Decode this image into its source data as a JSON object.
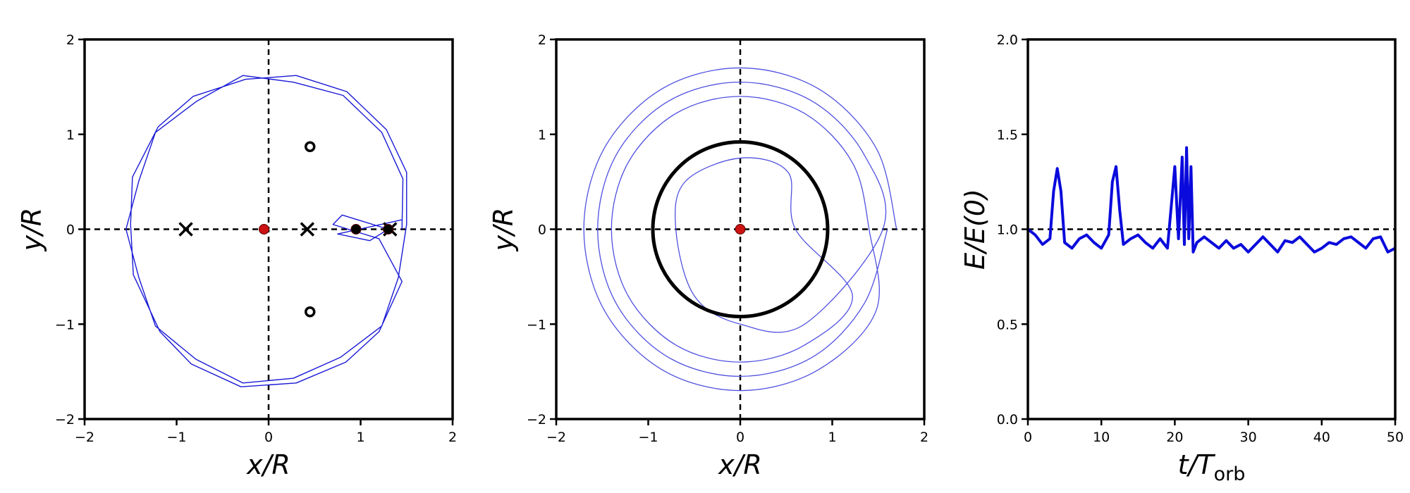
{
  "chart_data": [
    {
      "type": "line",
      "xlabel": "x/R",
      "ylabel": "y/R",
      "xlim": [
        -2,
        2
      ],
      "ylim": [
        -2,
        2
      ],
      "xticks": [
        {
          "value": -2,
          "label": "−2"
        },
        {
          "value": -1,
          "label": "−1"
        },
        0,
        1,
        2
      ],
      "yticks": [
        {
          "value": -2,
          "label": "−2"
        },
        {
          "value": -1,
          "label": "−1"
        },
        0,
        1,
        2
      ],
      "hlines": [
        0
      ],
      "vlines": [
        0
      ],
      "series": [
        {
          "color": "#1a1ad6",
          "width": 1.4,
          "smooth": false,
          "x": [
            1.45,
            1.46,
            1.23,
            0.81,
            0.27,
            -0.28,
            -0.78,
            -1.23,
            -1.41,
            -1.55,
            -1.41,
            -1.23,
            -0.79,
            -0.28,
            0.27,
            0.78,
            1.23,
            1.41,
            1.5,
            1.5,
            1.28,
            0.85,
            0.3,
            -0.25,
            -0.82,
            -1.2,
            -1.48,
            -1.5,
            -1.47,
            -1.18,
            -0.84,
            -0.3,
            0.3,
            0.84,
            1.2,
            1.45,
            1.2,
            0.7,
            0.8,
            1.3,
            1.1,
            0.75,
            1.45
          ],
          "y": [
            0,
            0.53,
            1.02,
            1.41,
            1.55,
            1.62,
            1.35,
            1.02,
            0.51,
            0,
            -0.51,
            -1.02,
            -1.37,
            -1.62,
            -1.57,
            -1.35,
            -1.02,
            -0.51,
            0.05,
            0.6,
            1.05,
            1.45,
            1.62,
            1.58,
            1.4,
            1.08,
            0.55,
            0.05,
            -0.48,
            -1.08,
            -1.42,
            -1.66,
            -1.62,
            -1.4,
            -1.08,
            -0.55,
            -0.1,
            0.05,
            0.15,
            0,
            -0.12,
            -0.05,
            0.1
          ]
        }
      ],
      "markers": [
        {
          "marker": "x",
          "color": "#000000",
          "x": [
            -0.9,
            0.42,
            1.32
          ],
          "y": [
            0,
            0,
            0
          ]
        },
        {
          "marker": "o",
          "color": "#000000",
          "x": [
            0.45,
            0.45
          ],
          "y": [
            0.87,
            -0.87
          ]
        },
        {
          "marker": "dot",
          "color": "#000000",
          "x": [
            0.95,
            1.3
          ],
          "y": [
            0,
            0
          ]
        },
        {
          "marker": "dot",
          "color": "#cc1111",
          "x": [
            -0.05
          ],
          "y": [
            0
          ]
        }
      ]
    },
    {
      "type": "line",
      "xlabel": "x/R",
      "ylabel": "y/R",
      "xlim": [
        -2,
        2
      ],
      "ylim": [
        -2,
        2
      ],
      "xticks": [
        {
          "value": -2,
          "label": "−2"
        },
        {
          "value": -1,
          "label": "−1"
        },
        0,
        1,
        2
      ],
      "yticks": [
        {
          "value": -2,
          "label": "−2"
        },
        {
          "value": -1,
          "label": "−1"
        },
        0,
        1,
        2
      ],
      "hlines": [
        0
      ],
      "vlines": [
        0
      ],
      "circle": {
        "r": 0.95,
        "color": "#000000"
      },
      "series": [
        {
          "color": "#5050e0",
          "width": 1.3,
          "smooth": true,
          "x": [
            1.7,
            1.48,
            0.85,
            0,
            -0.85,
            -1.48,
            -1.7,
            -1.48,
            -0.85,
            0,
            0.85,
            1.48,
            1.4,
            1.22,
            0.7,
            0,
            -0.7,
            -1.22,
            -1.4,
            -1.22,
            -0.7,
            0,
            0.7,
            1.22,
            0.6,
            0.52,
            0,
            -0.6,
            -0.7,
            -0.5,
            0,
            0.7,
            1.55,
            1.35,
            0.78,
            0,
            -0.78,
            -1.35,
            -1.55,
            -1.35,
            -0.78,
            0,
            0.78,
            1.35,
            1.6
          ],
          "y": [
            0,
            0.85,
            1.48,
            1.7,
            1.48,
            0.85,
            0,
            -0.85,
            -1.48,
            -1.7,
            -1.48,
            -0.85,
            0,
            0.7,
            1.22,
            1.4,
            1.22,
            0.7,
            0,
            -0.7,
            -1.22,
            -1.4,
            -1.22,
            -0.7,
            0,
            0.6,
            0.75,
            0.5,
            0,
            -0.7,
            -1.0,
            -1.0,
            0,
            0.78,
            1.35,
            1.55,
            1.35,
            0.78,
            0,
            -0.78,
            -1.35,
            -1.55,
            -1.35,
            -0.78,
            0
          ]
        }
      ],
      "markers": [
        {
          "marker": "dot",
          "color": "#cc1111",
          "x": [
            0
          ],
          "y": [
            0
          ]
        }
      ]
    },
    {
      "type": "line",
      "xlabel": "t/T",
      "xlabel_subscript": "orb",
      "ylabel": "E/E(0)",
      "xlim": [
        0,
        50
      ],
      "ylim": [
        0,
        2
      ],
      "xticks": [
        0,
        10,
        20,
        30,
        40,
        50
      ],
      "yticks": [
        {
          "value": 0,
          "label": "0.0"
        },
        0.5,
        {
          "value": 1,
          "label": "1.0"
        },
        1.5,
        {
          "value": 2,
          "label": "2.0"
        }
      ],
      "hlines": [
        1
      ],
      "series": [
        {
          "color": "#0a0adc",
          "width": 4,
          "smooth": false,
          "x": [
            0,
            1,
            2,
            3,
            3.5,
            4,
            4.5,
            5,
            6,
            7,
            8,
            9,
            10,
            11,
            11.5,
            12,
            12.5,
            13,
            14,
            15,
            16,
            17,
            18,
            19,
            20,
            20.5,
            21,
            21.3,
            21.6,
            21.9,
            22.2,
            22.5,
            23,
            24,
            25,
            26,
            27,
            28,
            29,
            30,
            31,
            32,
            33,
            34,
            35,
            36,
            37,
            38,
            39,
            40,
            41,
            42,
            43,
            44,
            45,
            46,
            47,
            48,
            49,
            50
          ],
          "y": [
            1.0,
            0.97,
            0.92,
            0.95,
            1.2,
            1.32,
            1.2,
            0.93,
            0.9,
            0.95,
            0.97,
            0.93,
            0.9,
            0.97,
            1.25,
            1.33,
            1.1,
            0.92,
            0.95,
            0.97,
            0.93,
            0.9,
            0.95,
            0.9,
            1.33,
            0.95,
            1.38,
            0.92,
            1.43,
            0.95,
            1.33,
            0.88,
            0.93,
            0.96,
            0.93,
            0.9,
            0.94,
            0.9,
            0.92,
            0.88,
            0.92,
            0.96,
            0.92,
            0.88,
            0.94,
            0.93,
            0.96,
            0.92,
            0.88,
            0.9,
            0.93,
            0.92,
            0.95,
            0.96,
            0.93,
            0.9,
            0.95,
            0.96,
            0.88,
            0.9
          ]
        }
      ]
    }
  ]
}
